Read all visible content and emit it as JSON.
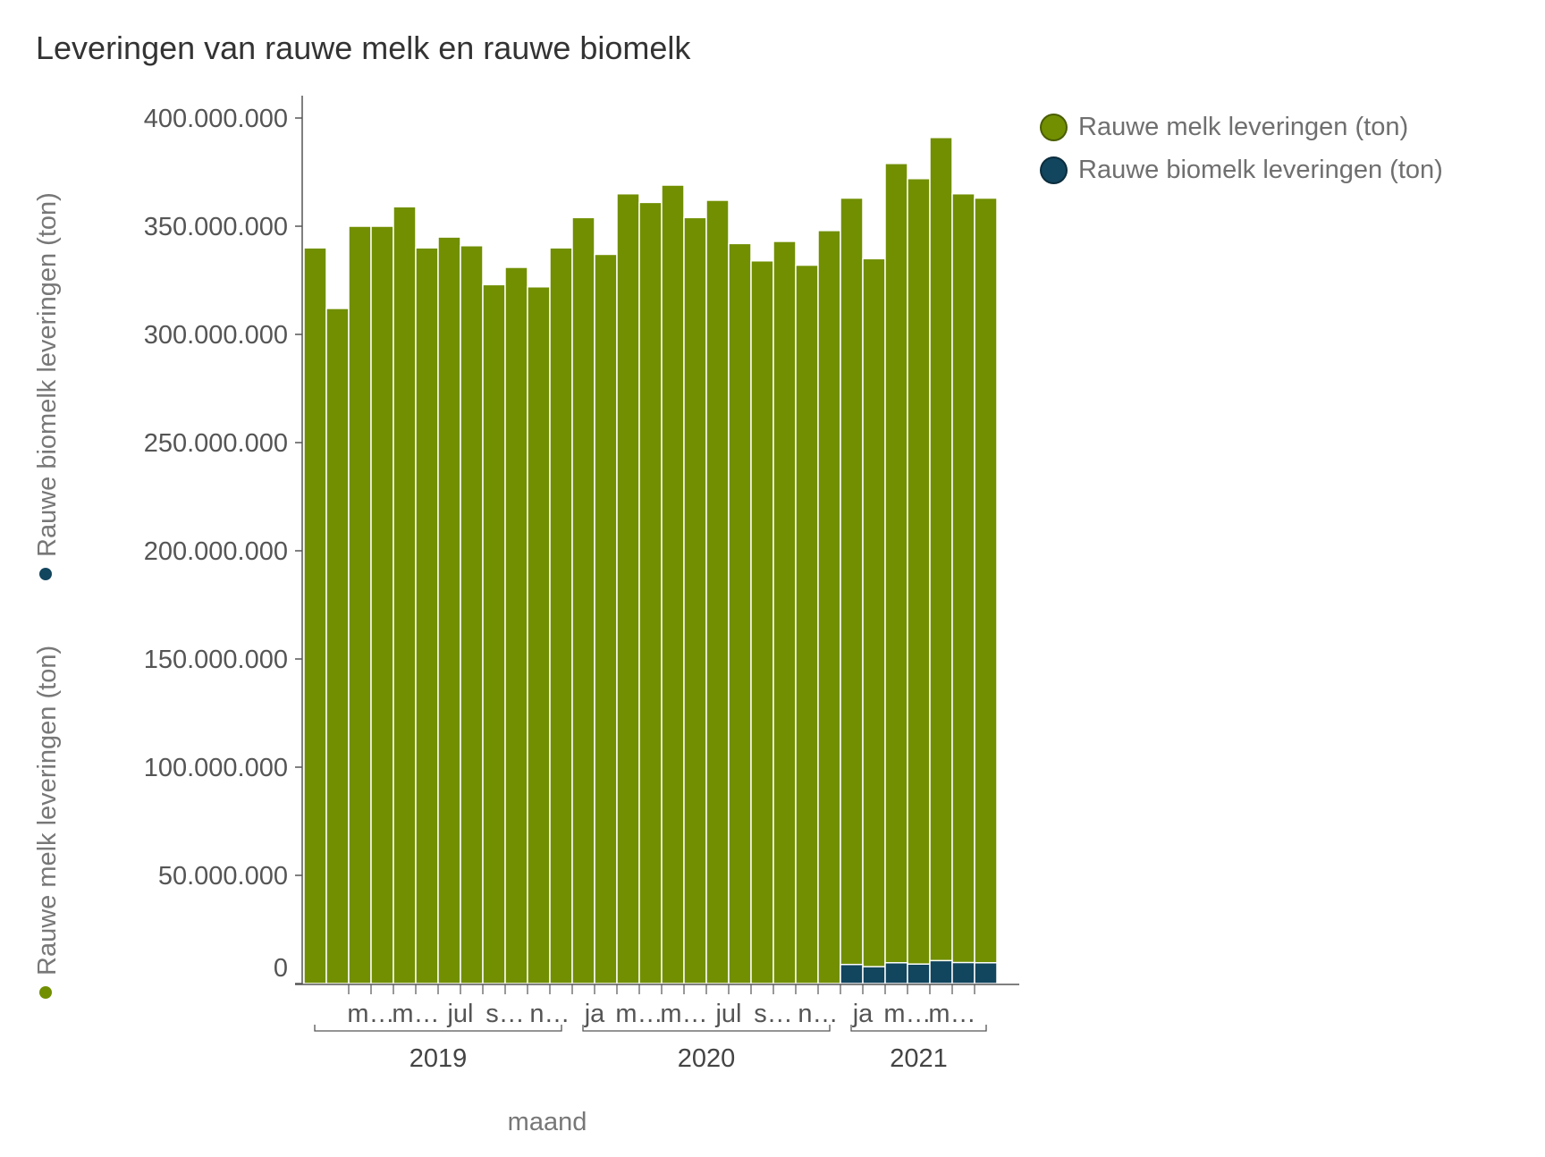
{
  "title": "Leveringen van rauwe melk en rauwe biomelk",
  "colors": {
    "rauwe_melk": "#718f01",
    "rauwe_biomelk": "#12455e",
    "axis": "#555555",
    "bar_border": "#ffffff"
  },
  "legend": {
    "items": [
      {
        "label": "Rauwe melk leveringen (ton)",
        "color": "#718f01"
      },
      {
        "label": "Rauwe biomelk leveringen (ton)",
        "color": "#12455e"
      }
    ]
  },
  "chart_data": {
    "type": "bar",
    "stacked": false,
    "title": "Leveringen van rauwe melk en rauwe biomelk",
    "xlabel": "maand",
    "ylabel_parts": [
      "Rauwe melk leveringen (ton)",
      "Rauwe biomelk leveringen (ton)"
    ],
    "ylim": [
      0,
      410000000
    ],
    "yticks": [
      0,
      50000000,
      100000000,
      150000000,
      200000000,
      250000000,
      300000000,
      350000000,
      400000000
    ],
    "ytick_labels": [
      "0",
      "50.000.000",
      "100.000.000",
      "150.000.000",
      "200.000.000",
      "250.000.000",
      "300.000.000",
      "350.000.000",
      "400.000.000"
    ],
    "month_tick_labels": [
      "m…",
      "m…",
      "jul",
      "s…",
      "n…",
      "ja",
      "m…",
      "m…",
      "jul",
      "s…",
      "n…",
      "ja",
      "m…",
      "m…"
    ],
    "month_tick_label_positions": [
      3,
      5,
      7,
      9,
      11,
      13,
      15,
      17,
      19,
      21,
      23,
      25,
      27,
      29
    ],
    "years": [
      {
        "label": "2019",
        "start": 0,
        "end": 11
      },
      {
        "label": "2020",
        "start": 12,
        "end": 23
      },
      {
        "label": "2021",
        "start": 24,
        "end": 30
      }
    ],
    "categories": [
      "2019-01",
      "2019-02",
      "2019-03",
      "2019-04",
      "2019-05",
      "2019-06",
      "2019-07",
      "2019-08",
      "2019-09",
      "2019-10",
      "2019-11",
      "2019-12",
      "2020-01",
      "2020-02",
      "2020-03",
      "2020-04",
      "2020-05",
      "2020-06",
      "2020-07",
      "2020-08",
      "2020-09",
      "2020-10",
      "2020-11",
      "2020-12",
      "2021-01",
      "2021-02",
      "2021-03",
      "2021-04",
      "2021-05",
      "2021-06",
      "2021-07"
    ],
    "series": [
      {
        "name": "Rauwe melk leveringen (ton)",
        "values": [
          340000000,
          312000000,
          350000000,
          350000000,
          359000000,
          340000000,
          345000000,
          341000000,
          323000000,
          331000000,
          322000000,
          340000000,
          354000000,
          337000000,
          365000000,
          361000000,
          369000000,
          354000000,
          362000000,
          342000000,
          334000000,
          343000000,
          332000000,
          348000000,
          363000000,
          335000000,
          379000000,
          372000000,
          391000000,
          365000000,
          363000000
        ]
      },
      {
        "name": "Rauwe biomelk leveringen (ton)",
        "values": [
          null,
          null,
          null,
          null,
          null,
          null,
          null,
          null,
          null,
          null,
          null,
          null,
          null,
          null,
          null,
          null,
          null,
          null,
          null,
          null,
          null,
          null,
          null,
          null,
          8800000,
          7800000,
          9600000,
          9000000,
          10600000,
          9700000,
          9600000
        ]
      }
    ]
  }
}
